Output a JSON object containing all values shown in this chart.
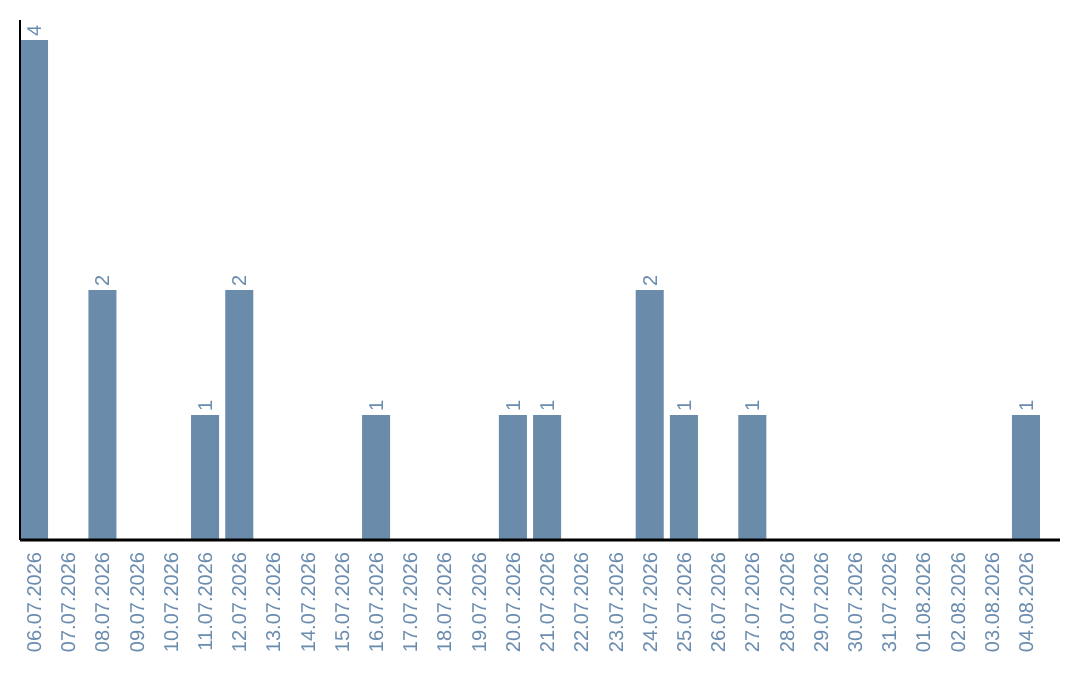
{
  "chart_data": {
    "type": "bar",
    "categories": [
      "06.07.2026",
      "07.07.2026",
      "08.07.2026",
      "09.07.2026",
      "10.07.2026",
      "11.07.2026",
      "12.07.2026",
      "13.07.2026",
      "14.07.2026",
      "15.07.2026",
      "16.07.2026",
      "17.07.2026",
      "18.07.2026",
      "19.07.2026",
      "20.07.2026",
      "21.07.2026",
      "22.07.2026",
      "23.07.2026",
      "24.07.2026",
      "25.07.2026",
      "26.07.2026",
      "27.07.2026",
      "28.07.2026",
      "29.07.2026",
      "30.07.2026",
      "31.07.2026",
      "01.08.2026",
      "02.08.2026",
      "03.08.2026",
      "04.08.2026"
    ],
    "values": [
      4,
      0,
      2,
      0,
      0,
      1,
      2,
      0,
      0,
      0,
      1,
      0,
      0,
      0,
      1,
      1,
      0,
      0,
      2,
      1,
      0,
      1,
      0,
      0,
      0,
      0,
      0,
      0,
      0,
      1
    ],
    "value_labels": [
      "4",
      null,
      "2",
      null,
      null,
      "1",
      "2",
      null,
      null,
      null,
      "1",
      null,
      null,
      null,
      "1",
      "1",
      null,
      null,
      "2",
      "1",
      null,
      "1",
      null,
      null,
      null,
      null,
      null,
      null,
      null,
      "1"
    ],
    "color": "#6a8caa",
    "ylim": [
      0,
      4.16
    ],
    "tick_labels": "x"
  }
}
